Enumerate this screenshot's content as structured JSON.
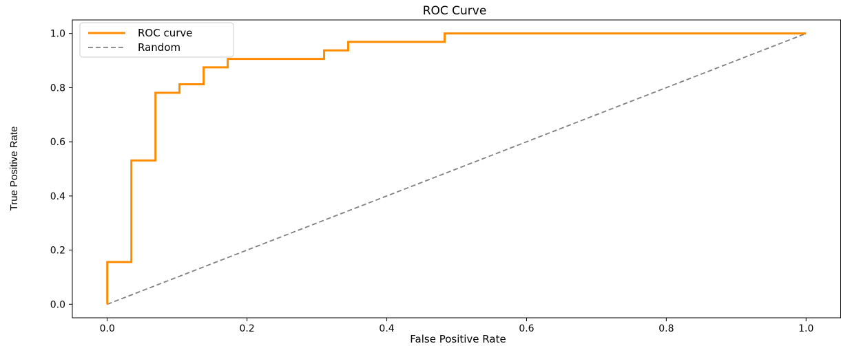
{
  "chart_data": {
    "type": "line",
    "title": "ROC Curve",
    "xlabel": "False Positive Rate",
    "ylabel": "True Positive Rate",
    "xlim": [
      -0.05,
      1.05
    ],
    "ylim": [
      -0.05,
      1.05
    ],
    "x_ticks": [
      "0.0",
      "0.2",
      "0.4",
      "0.6",
      "0.8",
      "1.0"
    ],
    "y_ticks": [
      "0.0",
      "0.2",
      "0.4",
      "0.6",
      "0.8",
      "1.0"
    ],
    "grid": false,
    "legend_position": "top-left",
    "series": [
      {
        "name": "ROC curve",
        "color": "#ff8c00",
        "style": "solid",
        "points": [
          [
            0.0,
            0.0
          ],
          [
            0.0,
            0.156
          ],
          [
            0.0345,
            0.156
          ],
          [
            0.0345,
            0.531
          ],
          [
            0.069,
            0.531
          ],
          [
            0.069,
            0.781
          ],
          [
            0.1034,
            0.781
          ],
          [
            0.1034,
            0.8125
          ],
          [
            0.1379,
            0.8125
          ],
          [
            0.1379,
            0.875
          ],
          [
            0.1724,
            0.875
          ],
          [
            0.1724,
            0.906
          ],
          [
            0.3103,
            0.906
          ],
          [
            0.3103,
            0.9375
          ],
          [
            0.3448,
            0.9375
          ],
          [
            0.3448,
            0.969
          ],
          [
            0.4828,
            0.969
          ],
          [
            0.4828,
            1.0
          ],
          [
            1.0,
            1.0
          ]
        ]
      },
      {
        "name": "Random",
        "color": "#808080",
        "style": "dashed",
        "points": [
          [
            0.0,
            0.0
          ],
          [
            1.0,
            1.0
          ]
        ]
      }
    ]
  }
}
